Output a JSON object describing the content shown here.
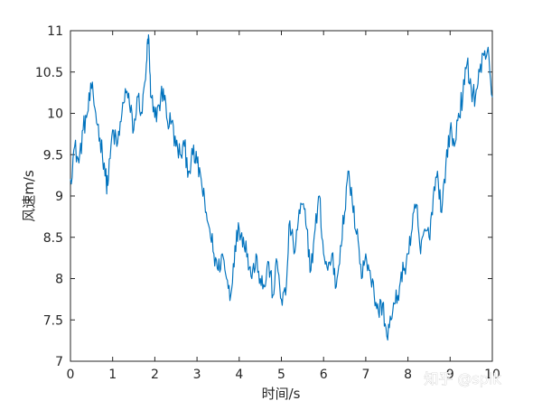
{
  "chart_data": {
    "type": "line",
    "xlabel": "时间/s",
    "ylabel": "风速m/s",
    "xlim": [
      0,
      10
    ],
    "ylim": [
      7,
      11
    ],
    "xticks": [
      "0",
      "1",
      "2",
      "3",
      "4",
      "5",
      "6",
      "7",
      "8",
      "9",
      "10"
    ],
    "yticks": [
      "7",
      "7.5",
      "8",
      "8.5",
      "9",
      "9.5",
      "10",
      "10.5",
      "11"
    ],
    "grid": false,
    "series": [
      {
        "color": "#0072bd",
        "x": [
          0,
          0.1,
          0.2,
          0.3,
          0.4,
          0.5,
          0.6,
          0.7,
          0.8,
          0.85,
          0.9,
          1.0,
          1.1,
          1.2,
          1.3,
          1.4,
          1.5,
          1.6,
          1.7,
          1.8,
          1.85,
          1.9,
          2.0,
          2.1,
          2.2,
          2.3,
          2.4,
          2.5,
          2.6,
          2.7,
          2.8,
          2.9,
          3.0,
          3.1,
          3.2,
          3.3,
          3.4,
          3.5,
          3.6,
          3.7,
          3.8,
          3.9,
          4.0,
          4.1,
          4.2,
          4.3,
          4.4,
          4.5,
          4.6,
          4.7,
          4.8,
          4.9,
          5.0,
          5.1,
          5.2,
          5.3,
          5.4,
          5.5,
          5.6,
          5.7,
          5.8,
          5.9,
          6.0,
          6.1,
          6.2,
          6.3,
          6.4,
          6.5,
          6.6,
          6.7,
          6.8,
          6.9,
          7.0,
          7.1,
          7.2,
          7.3,
          7.4,
          7.5,
          7.6,
          7.7,
          7.8,
          7.9,
          8.0,
          8.1,
          8.2,
          8.3,
          8.4,
          8.5,
          8.6,
          8.7,
          8.8,
          8.9,
          9.0,
          9.1,
          9.2,
          9.3,
          9.4,
          9.5,
          9.6,
          9.7,
          9.8,
          9.9,
          10.0
        ],
        "y": [
          9.2,
          9.6,
          9.4,
          9.8,
          10.0,
          10.3,
          10.0,
          9.7,
          9.4,
          9.15,
          9.2,
          9.8,
          9.6,
          9.9,
          10.3,
          10.1,
          9.8,
          10.2,
          10.0,
          10.6,
          10.95,
          10.2,
          9.95,
          10.1,
          10.3,
          9.9,
          9.9,
          9.6,
          9.5,
          9.6,
          9.3,
          9.5,
          9.4,
          9.2,
          8.8,
          8.6,
          8.3,
          8.1,
          8.3,
          8.0,
          7.8,
          8.4,
          8.6,
          8.5,
          8.3,
          8.0,
          8.3,
          8.0,
          7.9,
          8.2,
          7.8,
          8.2,
          7.75,
          7.8,
          8.7,
          8.3,
          8.7,
          8.9,
          8.6,
          8.1,
          8.6,
          9.0,
          8.3,
          8.1,
          8.3,
          7.9,
          8.4,
          8.8,
          9.3,
          8.8,
          8.6,
          8.0,
          8.3,
          8.1,
          7.8,
          7.6,
          7.7,
          7.3,
          7.5,
          7.7,
          7.9,
          8.1,
          8.3,
          8.6,
          8.9,
          8.3,
          8.6,
          8.5,
          9.0,
          9.3,
          8.8,
          9.4,
          9.8,
          9.6,
          10.0,
          10.2,
          10.6,
          10.3,
          10.2,
          10.5,
          10.7,
          10.8,
          10.2
        ]
      }
    ]
  },
  "watermark": "知乎 @splk"
}
